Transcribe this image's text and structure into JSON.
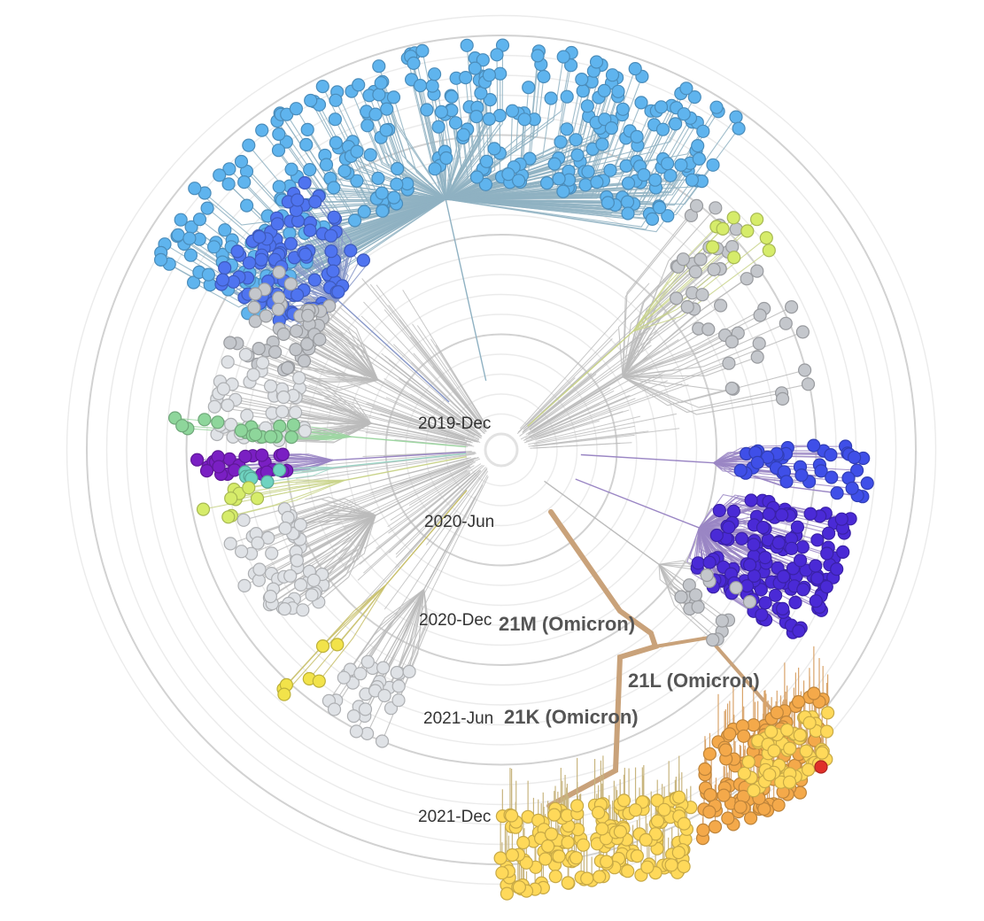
{
  "time_axis": {
    "labels": [
      {
        "id": "t0",
        "text": "2019-Dec"
      },
      {
        "id": "t1",
        "text": "2020-Jun"
      },
      {
        "id": "t2",
        "text": "2020-Dec"
      },
      {
        "id": "t3",
        "text": "2021-Jun"
      },
      {
        "id": "t4",
        "text": "2021-Dec"
      }
    ]
  },
  "clade_labels": {
    "c21m": "21M (Omicron)",
    "c21l": "21L (Omicron)",
    "c21k": "21K (Omicron)"
  },
  "colors": {
    "background": "#ffffff",
    "grid_ring": "#dddddd",
    "branch_default": "#bbbbbb",
    "branch_light_blue": "#8fb1c2",
    "branch_purple": "#9a86c4",
    "branch_omicron": "#c9a27a",
    "branch_21k": "#c8b57f",
    "tip_light_blue": "#5fb4ee",
    "tip_blue": "#4f74f0",
    "tip_grey": "#c4c7cc",
    "tip_light_grey": "#dfe2e6",
    "tip_green": "#8ed69b",
    "tip_teal": "#6fd3c0",
    "tip_purple": "#7a1fc3",
    "tip_indigo": "#4a2ad6",
    "tip_blue_violet": "#3f4fe8",
    "tip_yellow_green": "#d6ec6a",
    "tip_yellow": "#f2e34a",
    "tip_gold": "#ffd95a",
    "tip_orange": "#f4a94a",
    "tip_red": "#e0302a"
  }
}
